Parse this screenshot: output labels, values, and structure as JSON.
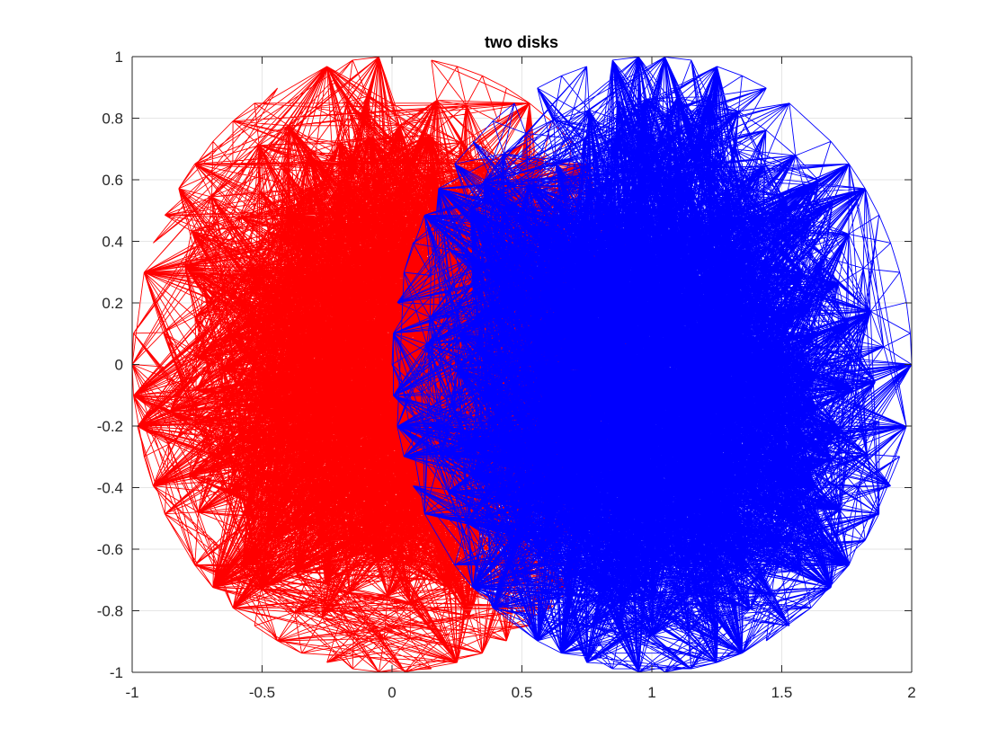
{
  "chart_data": {
    "type": "mesh",
    "title": "two disks",
    "xlabel": "",
    "ylabel": "",
    "xlim": [
      -1,
      2
    ],
    "ylim": [
      -1,
      1
    ],
    "aspect": "equal-data",
    "grid": true,
    "x_ticks": [
      -1,
      -0.5,
      0,
      0.5,
      1,
      1.5,
      2
    ],
    "y_ticks": [
      -1,
      -0.8,
      -0.6,
      -0.4,
      -0.2,
      0,
      0.2,
      0.4,
      0.6,
      0.8,
      1
    ],
    "x_tick_labels": [
      "-1",
      "-0.5",
      "0",
      "0.5",
      "1",
      "1.5",
      "2"
    ],
    "y_tick_labels": [
      "-1",
      "-0.8",
      "-0.6",
      "-0.4",
      "-0.2",
      "0",
      "0.2",
      "0.4",
      "0.6",
      "0.8",
      "1"
    ],
    "series": [
      {
        "shape": "disk",
        "center": [
          0,
          0
        ],
        "radius": 1,
        "color": "#ff0000",
        "mesh": "triangulated",
        "approx_edge_length": 0.12
      },
      {
        "shape": "disk",
        "center": [
          1,
          0
        ],
        "radius": 1,
        "color": "#0000ff",
        "mesh": "triangulated",
        "approx_edge_length": 0.12
      }
    ]
  },
  "colors": {
    "axis": "#262626",
    "grid": "#e6e6e6",
    "background": "#ffffff"
  }
}
